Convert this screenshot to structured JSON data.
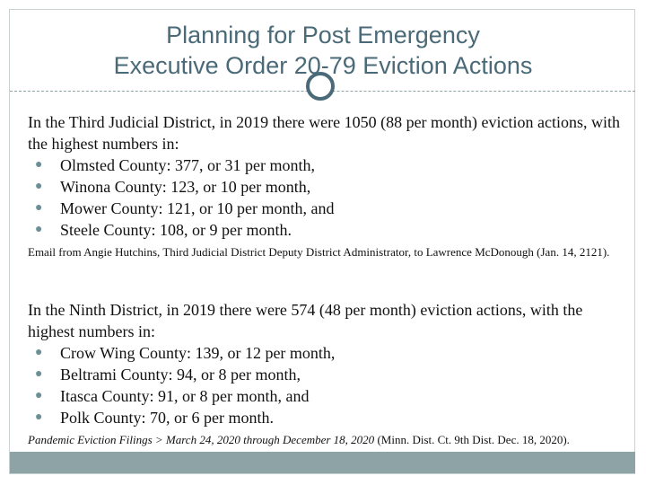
{
  "title": {
    "line1": "Planning for Post Emergency",
    "line2": "Executive Order 20-79 Eviction Actions"
  },
  "section1": {
    "intro": "In the Third Judicial District, in 2019 there were 1050 (88 per month) eviction actions, with the highest numbers in:",
    "items": [
      "Olmsted County: 377, or 31 per month,",
      "Winona County: 123, or 10 per month,",
      "Mower County: 121, or 10 per month, and",
      "Steele County: 108, or 9 per month."
    ],
    "source": "Email from Angie Hutchins, Third Judicial District Deputy District Administrator, to Lawrence McDonough (Jan. 14, 2121)."
  },
  "section2": {
    "intro": "In the Ninth District, in 2019 there were 574 (48 per month) eviction actions, with the highest numbers in:",
    "items": [
      "Crow Wing County: 139, or 12 per month,",
      "Beltrami County: 94, or 8 per month,",
      "Itasca County: 91, or 8 per month, and",
      "Polk County: 70, or 6 per month."
    ],
    "source_italic": "Pandemic Eviction Filings > March 24, 2020 through December 18, 2020",
    "source_rest": " (Minn. Dist. Ct. 9th Dist. Dec. 18, 2020)."
  },
  "bullet_glyph": "●",
  "colors": {
    "title": "#4a6a78",
    "bullet": "#6b8e98",
    "footer_bar": "#8ea3a6"
  }
}
